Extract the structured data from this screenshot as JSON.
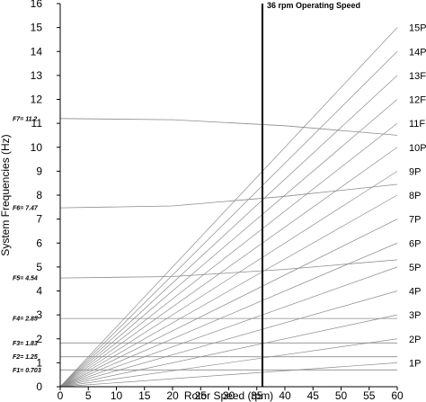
{
  "chart_data": {
    "type": "line",
    "title": "",
    "xlabel": "Rotor Speed (rpm)",
    "ylabel": "System Frequencies (Hz)",
    "xlim": [
      0,
      60
    ],
    "ylim": [
      0,
      16
    ],
    "xticks": [
      0,
      5,
      10,
      15,
      20,
      25,
      30,
      35,
      40,
      45,
      50,
      55,
      60
    ],
    "yticks": [
      0,
      1,
      2,
      3,
      4,
      5,
      6,
      7,
      8,
      9,
      10,
      11,
      12,
      13,
      14,
      15,
      16
    ],
    "grid": false,
    "operating_speed": {
      "x": 36,
      "label": "36 rpm Operating Speed"
    },
    "harmonics": [
      {
        "name": "1P",
        "multiplier": 1
      },
      {
        "name": "2P",
        "multiplier": 2
      },
      {
        "name": "3P",
        "multiplier": 3
      },
      {
        "name": "4P",
        "multiplier": 4
      },
      {
        "name": "5P",
        "multiplier": 5
      },
      {
        "name": "6P",
        "multiplier": 6
      },
      {
        "name": "7P",
        "multiplier": 7
      },
      {
        "name": "8P",
        "multiplier": 8
      },
      {
        "name": "9P",
        "multiplier": 9
      },
      {
        "name": "10P",
        "multiplier": 10
      },
      {
        "name": "11F",
        "multiplier": 11
      },
      {
        "name": "12F",
        "multiplier": 12
      },
      {
        "name": "13F",
        "multiplier": 13
      },
      {
        "name": "14P",
        "multiplier": 14
      },
      {
        "name": "15P",
        "multiplier": 15
      }
    ],
    "modes": [
      {
        "label": "F1= 0.703",
        "x": [
          0,
          60
        ],
        "y": [
          0.703,
          0.703
        ]
      },
      {
        "label": "F2= 1.25",
        "x": [
          0,
          60
        ],
        "y": [
          1.25,
          1.25
        ]
      },
      {
        "label": "F3= 1.83",
        "x": [
          0,
          60
        ],
        "y": [
          1.83,
          1.83
        ]
      },
      {
        "label": "F4= 2.85",
        "x": [
          0,
          60
        ],
        "y": [
          2.85,
          2.85
        ]
      },
      {
        "label": "F5= 4.54",
        "x": [
          0,
          20,
          40,
          60
        ],
        "y": [
          4.54,
          4.6,
          4.9,
          5.3
        ]
      },
      {
        "label": "F6= 7.47",
        "x": [
          0,
          20,
          40,
          60
        ],
        "y": [
          7.47,
          7.55,
          7.95,
          8.45
        ]
      },
      {
        "label": "F7= 11.2",
        "x": [
          0,
          20,
          40,
          60
        ],
        "y": [
          11.2,
          11.15,
          10.9,
          10.5
        ]
      }
    ]
  }
}
